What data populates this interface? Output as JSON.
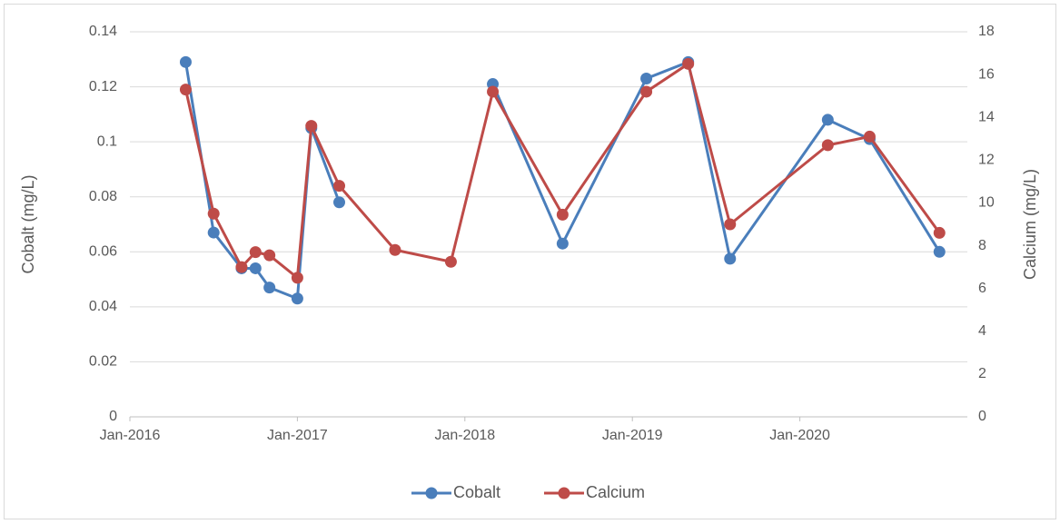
{
  "chart_data": {
    "type": "line",
    "x": [
      "2016-05",
      "2016-07",
      "2016-09",
      "2016-10",
      "2016-11",
      "2017-01",
      "2017-02",
      "2017-04",
      "2017-08",
      "2017-12",
      "2018-03",
      "2018-08",
      "2019-02",
      "2019-05",
      "2019-08",
      "2020-03",
      "2020-06",
      "2020-11"
    ],
    "series": [
      {
        "name": "Cobalt",
        "color": "#4a7ebb",
        "values": [
          0.129,
          0.067,
          0.054,
          0.054,
          0.047,
          0.043,
          0.105,
          0.078,
          null,
          null,
          0.121,
          0.063,
          0.123,
          0.129,
          0.0575,
          0.108,
          0.101,
          0.06
        ]
      },
      {
        "name": "Calcium",
        "color": "#be4b48",
        "axis": "y2",
        "values": [
          15.3,
          9.5,
          7.0,
          7.7,
          7.55,
          6.5,
          13.6,
          10.8,
          7.8,
          7.25,
          15.2,
          9.45,
          15.2,
          16.5,
          9.0,
          12.7,
          13.1,
          8.6
        ]
      }
    ],
    "xlim": [
      "2016-01",
      "2021-01"
    ],
    "xticks": [
      {
        "value": "2016-01",
        "label": "Jan-2016"
      },
      {
        "value": "2017-01",
        "label": "Jan-2017"
      },
      {
        "value": "2018-01",
        "label": "Jan-2018"
      },
      {
        "value": "2019-01",
        "label": "Jan-2019"
      },
      {
        "value": "2020-01",
        "label": "Jan-2020"
      }
    ],
    "ylabel": "Cobalt (mg/L)",
    "ylim": [
      0,
      0.14
    ],
    "yticks": [
      0,
      0.02,
      0.04,
      0.06,
      0.08,
      0.1,
      0.12,
      0.14
    ],
    "y2label": "Calcium (mg/L)",
    "y2lim": [
      0,
      18
    ],
    "y2ticks": [
      0,
      2,
      4,
      6,
      8,
      10,
      12,
      14,
      16,
      18
    ],
    "grid": true,
    "legend": "bottom"
  }
}
